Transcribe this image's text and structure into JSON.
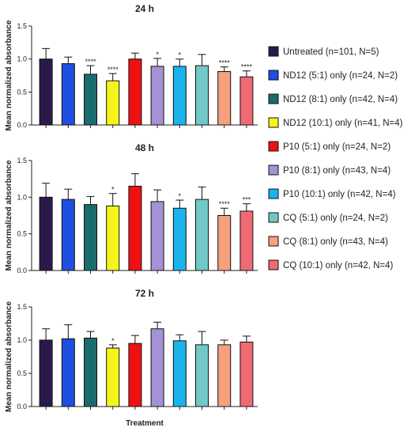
{
  "chart_data": {
    "type": "bar",
    "xlabel": "Treatment",
    "ylabel": "Mean normalized absorbance",
    "ylim": [
      0,
      1.5
    ],
    "yticks": [
      "0.0",
      "0.5",
      "1.0",
      "1.5"
    ],
    "groups": [
      {
        "name": "Untreated",
        "legend": "Untreated (n=101, N=5)",
        "color": "#2a1a4a"
      },
      {
        "name": "ND12 (5:1) only",
        "legend": "ND12 (5:1) only (n=24, N=2)",
        "color": "#1f4fe0"
      },
      {
        "name": "ND12 (8:1) only",
        "legend": "ND12 (8:1) only (n=42, N=4)",
        "color": "#1a6b6b"
      },
      {
        "name": "ND12 (10:1) only",
        "legend": "ND12 (10:1) only (n=41, N=4)",
        "color": "#f5f51c"
      },
      {
        "name": "P10 (5:1) only",
        "legend": "P10 (5:1) only (n=24, N=2)",
        "color": "#ee1111"
      },
      {
        "name": "P10 (8:1) only",
        "legend": "P10 (8:1) only (n=43, N=4)",
        "color": "#a591d6"
      },
      {
        "name": "P10 (10:1) only",
        "legend": "P10 (10:1) only (n=42, N=4)",
        "color": "#1ab3ec"
      },
      {
        "name": "CQ (5:1) only",
        "legend": "CQ (5:1) only (n=24, N=2)",
        "color": "#70c9c6"
      },
      {
        "name": "CQ (8:1) only",
        "legend": "CQ (8:1) only (n=43, N=4)",
        "color": "#f7a07e"
      },
      {
        "name": "CQ (10:1) only",
        "legend": "CQ (10:1) only (n=42, N=4)",
        "color": "#f06a74"
      }
    ],
    "panels": [
      {
        "title": "24 h",
        "values": [
          1.0,
          0.93,
          0.77,
          0.67,
          1.0,
          0.89,
          0.89,
          0.9,
          0.81,
          0.73
        ],
        "errors": [
          0.16,
          0.1,
          0.13,
          0.11,
          0.09,
          0.12,
          0.11,
          0.17,
          0.07,
          0.09
        ],
        "significance": [
          "",
          "",
          "****",
          "****",
          "",
          "*",
          "*",
          "",
          "****",
          "****"
        ]
      },
      {
        "title": "48 h",
        "values": [
          1.0,
          0.97,
          0.9,
          0.88,
          1.15,
          0.94,
          0.85,
          0.97,
          0.75,
          0.81
        ],
        "errors": [
          0.19,
          0.14,
          0.11,
          0.17,
          0.17,
          0.16,
          0.11,
          0.17,
          0.1,
          0.1
        ],
        "significance": [
          "",
          "",
          "",
          "*",
          "",
          "",
          "*",
          "",
          "****",
          "***"
        ]
      },
      {
        "title": "72 h",
        "values": [
          1.0,
          1.02,
          1.03,
          0.88,
          0.95,
          1.17,
          0.99,
          0.93,
          0.93,
          0.97
        ],
        "errors": [
          0.17,
          0.21,
          0.1,
          0.05,
          0.12,
          0.1,
          0.09,
          0.2,
          0.07,
          0.09
        ],
        "significance": [
          "",
          "",
          "",
          "*",
          "",
          "",
          "",
          "",
          "",
          ""
        ]
      }
    ]
  }
}
